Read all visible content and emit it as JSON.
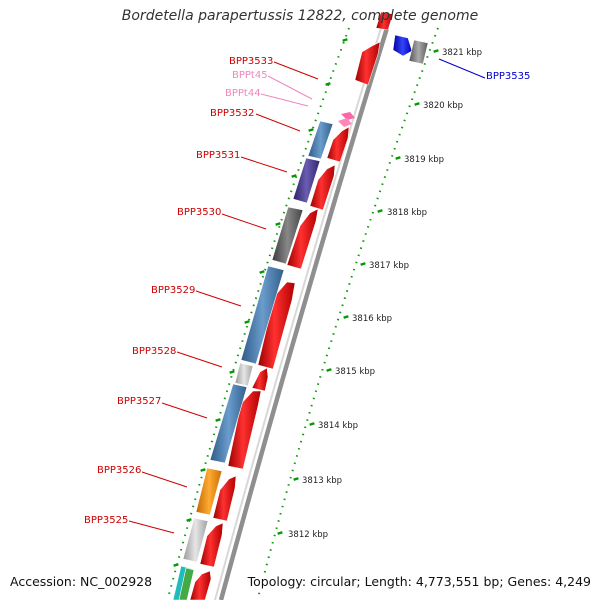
{
  "header": {
    "title": "Bordetella parapertussis 12822, complete genome"
  },
  "footer": {
    "accession": "Accession: NC_002928",
    "summary": "Topology: circular; Length: 4,773,551 bp; Genes: 4,249"
  },
  "colors": {
    "forward_gene": "#ff0000",
    "reverse_gene": "#0000ff",
    "label_red": "#cc0000",
    "label_pink": "#ee88bb",
    "label_blue": "#0000cc",
    "tick": "#009900",
    "backbone": "#999999"
  },
  "ruler": {
    "ticks": [
      "3812 kbp",
      "3813 kbp",
      "3814 kbp",
      "3815 kbp",
      "3816 kbp",
      "3817 kbp",
      "3818 kbp",
      "3819 kbp",
      "3820 kbp",
      "3821 kbp"
    ]
  },
  "gene_labels": [
    {
      "name": "BPP3533",
      "color": "#cc0000"
    },
    {
      "name": "BPPt45",
      "color": "#ee88bb"
    },
    {
      "name": "BPPt44",
      "color": "#ee88bb"
    },
    {
      "name": "BPP3532",
      "color": "#cc0000"
    },
    {
      "name": "BPP3531",
      "color": "#cc0000"
    },
    {
      "name": "BPP3530",
      "color": "#cc0000"
    },
    {
      "name": "BPP3529",
      "color": "#cc0000"
    },
    {
      "name": "BPP3528",
      "color": "#cc0000"
    },
    {
      "name": "BPP3527",
      "color": "#cc0000"
    },
    {
      "name": "BPP3526",
      "color": "#cc0000"
    },
    {
      "name": "BPP3525",
      "color": "#cc0000"
    },
    {
      "name": "BPP3535",
      "color": "#0000cc"
    }
  ]
}
